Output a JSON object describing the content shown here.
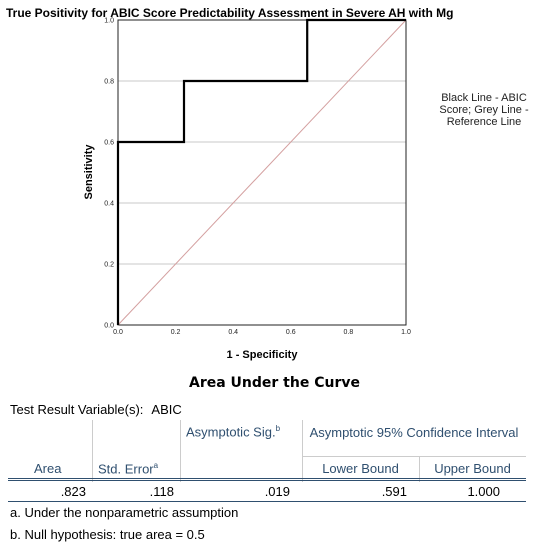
{
  "chart_data": {
    "type": "line",
    "title": "True Positivity for ABIC Score Predictability Assessment in Severe AH with Mg",
    "xlabel": "1 - Specificity",
    "ylabel": "Sensitivity",
    "xlim": [
      0.0,
      1.0
    ],
    "ylim": [
      0.0,
      1.0
    ],
    "x_ticks": [
      "0.0",
      "0.2",
      "0.4",
      "0.6",
      "0.8",
      "1.0"
    ],
    "y_ticks": [
      "0.0",
      "0.2",
      "0.4",
      "0.6",
      "0.8",
      "1.0"
    ],
    "grid": "horizontal",
    "legend_text": "Black Line - ABIC Score; Grey Line - Reference Line",
    "legend_position": "right",
    "series": [
      {
        "color": "#000000",
        "x": [
          0.0,
          0.0,
          0.229,
          0.229,
          0.657,
          0.657,
          1.0
        ],
        "y": [
          0.0,
          0.6,
          0.6,
          0.8,
          0.8,
          1.0,
          1.0
        ]
      },
      {
        "color": "#d4a0a0",
        "x": [
          0.0,
          1.0
        ],
        "y": [
          0.0,
          1.0
        ]
      }
    ]
  },
  "table": {
    "title": "Area Under the Curve",
    "test_variable_label": "Test Result Variable(s):",
    "test_variable_value": "ABIC",
    "headers": {
      "area": "Area",
      "std_error": "Std. Error",
      "std_error_sup": "a",
      "asym_sig": "Asymptotic Sig.",
      "asym_sig_sup": "b",
      "ci_group": "Asymptotic 95% Confidence Interval",
      "lower": "Lower Bound",
      "upper": "Upper Bound"
    },
    "row": {
      "area": ".823",
      "std_error": ".118",
      "asym_sig": ".019",
      "lower": ".591",
      "upper": "1.000"
    },
    "footnotes": [
      "a. Under the nonparametric assumption",
      "b. Null hypothesis: true area = 0.5"
    ]
  }
}
